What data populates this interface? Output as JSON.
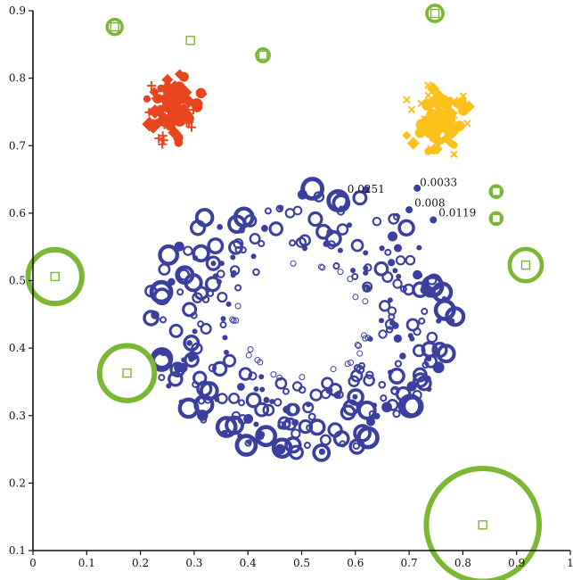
{
  "chart_data": {
    "type": "scatter",
    "title": "",
    "xlabel": "",
    "ylabel": "",
    "xlim": [
      0,
      1
    ],
    "ylim": [
      0.1,
      0.9
    ],
    "grid": false,
    "x_ticks": [
      "0",
      "0.1",
      "0.2",
      "0.3",
      "0.4",
      "0.5",
      "0.6",
      "0.7",
      "0.8",
      "0.9",
      "1"
    ],
    "y_ticks": [
      "0.1",
      "0.2",
      "0.3",
      "0.4",
      "0.5",
      "0.6",
      "0.7",
      "0.8",
      "0.9"
    ],
    "colors": {
      "blue": "#3b3f9e",
      "red": "#e8451f",
      "yellow": "#fcc21b",
      "green": "#7cb733"
    },
    "annotations": [
      {
        "text": "0.0251",
        "x": 0.585,
        "y": 0.63,
        "target_x": 0.62,
        "target_y": 0.635
      },
      {
        "text": "0.0033",
        "x": 0.72,
        "y": 0.64,
        "target_x": 0.715,
        "target_y": 0.637
      },
      {
        "text": "0.008",
        "x": 0.71,
        "y": 0.61,
        "target_x": 0.7,
        "target_y": 0.605
      },
      {
        "text": "0.0119",
        "x": 0.755,
        "y": 0.595,
        "target_x": 0.745,
        "target_y": 0.59
      }
    ],
    "outliers": [
      {
        "x": 0.152,
        "y": 0.876,
        "ring": 0.014
      },
      {
        "x": 0.293,
        "y": 0.856,
        "ring": 0.006
      },
      {
        "x": 0.428,
        "y": 0.834,
        "ring": 0.012
      },
      {
        "x": 0.748,
        "y": 0.896,
        "ring": 0.015
      },
      {
        "x": 0.862,
        "y": 0.632,
        "ring": 0.011
      },
      {
        "x": 0.862,
        "y": 0.592,
        "ring": 0.011
      },
      {
        "x": 0.917,
        "y": 0.523,
        "ring": 0.03
      },
      {
        "x": 0.041,
        "y": 0.506,
        "ring": 0.05
      },
      {
        "x": 0.175,
        "y": 0.363,
        "ring": 0.051
      },
      {
        "x": 0.837,
        "y": 0.138,
        "ring": 0.105
      }
    ],
    "clusters": [
      {
        "name": "",
        "shape": "circle",
        "color": "#3b3f9e",
        "cx": 0.5,
        "cy": 0.44,
        "rx": 0.29,
        "ry": 0.2,
        "count": 330,
        "min_ring": 0.004,
        "max_ring": 0.02,
        "hollow_center": true
      },
      {
        "name": "",
        "shape": "mixed-red",
        "color": "#e8451f",
        "cx": 0.262,
        "cy": 0.755,
        "rx": 0.075,
        "ry": 0.07,
        "count": 95,
        "min_ring": 0.004,
        "max_ring": 0.008
      },
      {
        "name": "",
        "shape": "mixed-yellow",
        "color": "#fcc21b",
        "cx": 0.755,
        "cy": 0.74,
        "rx": 0.085,
        "ry": 0.075,
        "count": 95,
        "min_ring": 0.004,
        "max_ring": 0.008
      }
    ]
  }
}
